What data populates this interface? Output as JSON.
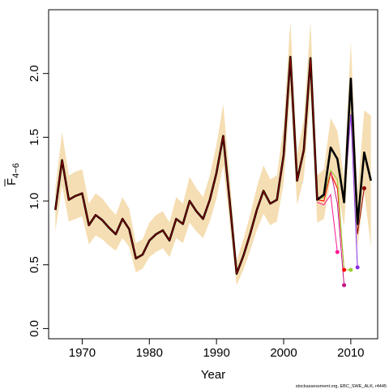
{
  "chart_data": {
    "type": "line",
    "xlabel": "Year",
    "ylabel_base": "F",
    "ylabel_sub": "4−6",
    "xlim": [
      1965,
      2014
    ],
    "ylim": [
      -0.08,
      2.5
    ],
    "xticks": [
      1970,
      1980,
      1990,
      2000,
      2010
    ],
    "yticks": [
      0.0,
      0.5,
      1.0,
      1.5,
      2.0
    ],
    "ytick_labels": [
      "0.0",
      "0.5",
      "1.0",
      "1.5",
      "2.0"
    ],
    "grid": false,
    "footnote": "stockassessment.org, EBC_SWE_ALK, r4445",
    "colors": {
      "band": "#f5deb3",
      "main": "#000000",
      "retro_lines": [
        "#8b0000",
        "#ff0000",
        "#ff1493",
        "#c71585",
        "#9acd32",
        "#8a2be2"
      ]
    },
    "series": [
      {
        "x": [
          1966,
          1967,
          1968,
          1969,
          1970,
          1971,
          1972,
          1973,
          1974,
          1975,
          1976,
          1977,
          1978,
          1979,
          1980,
          1981,
          1982,
          1983,
          1984,
          1985,
          1986,
          1987,
          1988,
          1989,
          1990,
          1991,
          1992,
          1993,
          1994,
          1995,
          1996,
          1997,
          1998,
          1999,
          2000,
          2001,
          2002,
          2003,
          2004,
          2005,
          2006,
          2007,
          2008,
          2009,
          2010,
          2011,
          2012,
          2013
        ],
        "values": [
          0.93,
          1.32,
          1.01,
          1.04,
          1.06,
          0.81,
          0.89,
          0.85,
          0.79,
          0.74,
          0.86,
          0.78,
          0.55,
          0.58,
          0.69,
          0.74,
          0.77,
          0.69,
          0.86,
          0.82,
          1.0,
          0.92,
          0.86,
          1.01,
          1.22,
          1.51,
          0.98,
          0.43,
          0.57,
          0.74,
          0.93,
          1.08,
          0.98,
          1.01,
          1.36,
          2.13,
          1.16,
          1.4,
          2.12,
          1.01,
          1.05,
          1.42,
          1.33,
          0.99,
          1.96,
          0.82,
          1.38,
          1.16
        ],
        "lower": [
          0.76,
          1.12,
          0.84,
          0.86,
          0.88,
          0.66,
          0.73,
          0.7,
          0.65,
          0.61,
          0.71,
          0.64,
          0.44,
          0.47,
          0.56,
          0.6,
          0.63,
          0.56,
          0.71,
          0.67,
          0.83,
          0.76,
          0.71,
          0.84,
          1.02,
          1.28,
          0.81,
          0.34,
          0.46,
          0.61,
          0.77,
          0.9,
          0.81,
          0.84,
          1.14,
          1.85,
          0.97,
          1.18,
          1.84,
          0.83,
          0.86,
          1.18,
          1.09,
          0.8,
          1.65,
          0.63,
          1.07,
          0.64
        ],
        "upper": [
          1.1,
          1.54,
          1.2,
          1.23,
          1.25,
          0.98,
          1.06,
          1.02,
          0.95,
          0.89,
          1.03,
          0.94,
          0.67,
          0.7,
          0.83,
          0.89,
          0.92,
          0.83,
          1.03,
          0.98,
          1.19,
          1.1,
          1.03,
          1.2,
          1.44,
          1.76,
          1.17,
          0.53,
          0.7,
          0.89,
          1.11,
          1.28,
          1.17,
          1.2,
          1.6,
          2.41,
          1.37,
          1.64,
          2.41,
          1.2,
          1.25,
          1.65,
          1.55,
          1.18,
          2.25,
          1.05,
          1.71,
          1.67
        ]
      },
      {
        "x": [
          2005,
          2006,
          2007,
          2008,
          2009
        ],
        "values": [
          1.01,
          1.0,
          1.22,
          1.1,
          0.46
        ]
      },
      {
        "x": [
          2005,
          2006,
          2007,
          2008
        ],
        "values": [
          0.99,
          0.97,
          1.05,
          0.6
        ]
      },
      {
        "x": [
          2005,
          2006,
          2007,
          2008,
          2009
        ],
        "values": [
          1.01,
          1.03,
          1.24,
          0.98,
          0.34
        ]
      },
      {
        "x": [
          2005,
          2006,
          2007,
          2008,
          2009,
          2010
        ],
        "values": [
          1.01,
          1.03,
          1.24,
          1.17,
          0.46,
          0.46
        ]
      },
      {
        "x": [
          2005,
          2006,
          2007,
          2008,
          2009,
          2010,
          2011
        ],
        "values": [
          1.02,
          1.05,
          1.42,
          1.32,
          1.0,
          1.68,
          0.48
        ]
      },
      {
        "x": [
          2005,
          2006,
          2007,
          2008,
          2009,
          2010,
          2011,
          2012
        ],
        "values": [
          1.01,
          1.05,
          1.42,
          1.33,
          0.99,
          1.91,
          0.74,
          1.1
        ]
      }
    ]
  }
}
